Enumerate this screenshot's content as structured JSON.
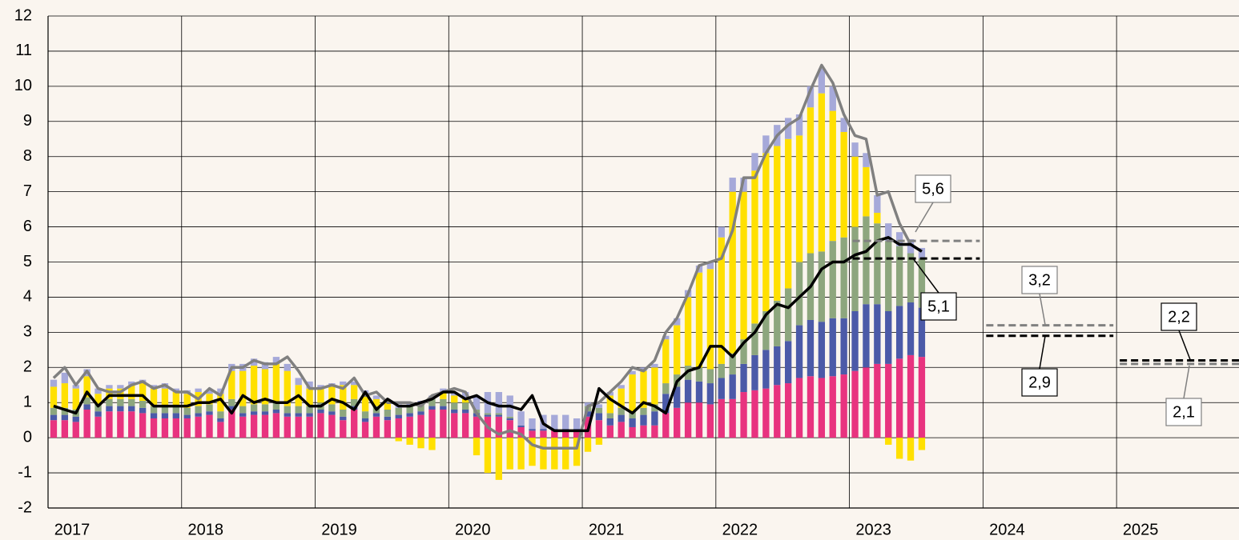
{
  "chart_data": {
    "type": "bar",
    "stacked": true,
    "categories": [
      "2017",
      null,
      null,
      null,
      null,
      null,
      null,
      null,
      null,
      null,
      null,
      null,
      "2018",
      null,
      null,
      null,
      null,
      null,
      null,
      null,
      null,
      null,
      null,
      null,
      "2019",
      null,
      null,
      null,
      null,
      null,
      null,
      null,
      null,
      null,
      null,
      null,
      "2020",
      null,
      null,
      null,
      null,
      null,
      null,
      null,
      null,
      null,
      null,
      null,
      "2021",
      null,
      null,
      null,
      null,
      null,
      null,
      null,
      null,
      null,
      null,
      null,
      "2022",
      null,
      null,
      null,
      null,
      null,
      null,
      null,
      null,
      null,
      null,
      null,
      "2023",
      null,
      null,
      null,
      null,
      null,
      null,
      null,
      null,
      null,
      null,
      null,
      "2024",
      null,
      null,
      null,
      null,
      null,
      null,
      null,
      null,
      null,
      null,
      null,
      "2025",
      null,
      null,
      null,
      null,
      null,
      null,
      null,
      null,
      null,
      null
    ],
    "series": [
      {
        "color": "#e8337f",
        "values": [
          0.5,
          0.5,
          0.45,
          0.8,
          0.6,
          0.75,
          0.75,
          0.75,
          0.7,
          0.55,
          0.55,
          0.55,
          0.55,
          0.6,
          0.65,
          0.45,
          0.8,
          0.6,
          0.65,
          0.65,
          0.7,
          0.6,
          0.6,
          0.6,
          0.7,
          0.65,
          0.5,
          0.8,
          0.45,
          0.6,
          0.5,
          0.55,
          0.6,
          0.65,
          0.8,
          0.8,
          0.7,
          0.7,
          0.6,
          0.6,
          0.6,
          0.5,
          0.3,
          0.2,
          0.2,
          0.2,
          0.2,
          0.2,
          0.6,
          0.5,
          0.35,
          0.45,
          0.3,
          0.35,
          0.35,
          0.7,
          0.85,
          1.0,
          1.0,
          0.95,
          1.1,
          1.1,
          1.3,
          1.35,
          1.4,
          1.5,
          1.55,
          1.7,
          1.75,
          1.7,
          1.75,
          1.8,
          1.9,
          2.0,
          2.1,
          2.1,
          2.25,
          2.35,
          2.3,
          null,
          null,
          null,
          null,
          null,
          null,
          null,
          null,
          null,
          null,
          null,
          null,
          null,
          null,
          null,
          null,
          null,
          null,
          null,
          null,
          null,
          null,
          null,
          null,
          null,
          null,
          null,
          null
        ]
      },
      {
        "color": "#4b5aa8",
        "values": [
          0.15,
          0.15,
          0.15,
          0.15,
          0.15,
          0.15,
          0.15,
          0.15,
          0.15,
          0.15,
          0.15,
          0.15,
          0.1,
          0.1,
          0.1,
          0.1,
          0.1,
          0.1,
          0.1,
          0.1,
          0.1,
          0.1,
          0.1,
          0.1,
          0.1,
          0.1,
          0.1,
          0.1,
          0.1,
          0.1,
          0.1,
          0.1,
          0.1,
          0.1,
          0.1,
          0.1,
          0.1,
          0.1,
          0.1,
          0.05,
          0.05,
          0.05,
          0.05,
          0.05,
          0.05,
          0.05,
          0.05,
          0.05,
          0.15,
          0.2,
          0.2,
          0.2,
          0.25,
          0.3,
          0.4,
          0.55,
          0.6,
          0.65,
          0.6,
          0.6,
          0.6,
          0.7,
          0.8,
          1.0,
          1.1,
          1.1,
          1.2,
          1.5,
          1.6,
          1.6,
          1.65,
          1.6,
          1.7,
          1.8,
          1.7,
          1.5,
          1.5,
          1.5,
          1.4,
          null,
          null,
          null,
          null,
          null,
          null,
          null,
          null,
          null,
          null,
          null,
          null,
          null,
          null,
          null,
          null,
          null,
          null,
          null,
          null,
          null,
          null,
          null,
          null,
          null,
          null,
          null,
          null
        ]
      },
      {
        "color": "#8da67e",
        "values": [
          0.2,
          0.2,
          0.2,
          0.2,
          0.2,
          0.2,
          0.2,
          0.2,
          0.2,
          0.2,
          0.2,
          0.2,
          0.2,
          0.2,
          0.2,
          0.2,
          0.2,
          0.2,
          0.2,
          0.2,
          0.2,
          0.2,
          0.2,
          0.2,
          0.2,
          0.2,
          0.2,
          0.2,
          0.2,
          0.2,
          0.2,
          0.2,
          0.2,
          0.2,
          0.2,
          0.2,
          0.2,
          0.2,
          0.1,
          0.05,
          0.05,
          0.05,
          0,
          0,
          0,
          0,
          0,
          0,
          0.15,
          0.15,
          0.15,
          0.2,
          0.2,
          0.2,
          0.2,
          0.3,
          0.35,
          0.4,
          0.4,
          0.4,
          0.4,
          0.6,
          0.7,
          0.9,
          1.1,
          1.3,
          1.5,
          1.8,
          1.9,
          2.0,
          2.2,
          2.3,
          2.4,
          2.5,
          2.3,
          2.0,
          1.7,
          1.4,
          1.4,
          null,
          null,
          null,
          null,
          null,
          null,
          null,
          null,
          null,
          null,
          null,
          null,
          null,
          null,
          null,
          null,
          null,
          null,
          null,
          null,
          null,
          null,
          null,
          null,
          null,
          null,
          null,
          null
        ]
      },
      {
        "color": "#ffe000",
        "values": [
          0.6,
          0.7,
          0.6,
          0.6,
          0.3,
          0.3,
          0.3,
          0.4,
          0.5,
          0.5,
          0.5,
          0.4,
          0.4,
          0.4,
          0.3,
          0.5,
          0.8,
          1.0,
          1.1,
          1.0,
          1.1,
          1.0,
          0.6,
          0.5,
          0.4,
          0.5,
          0.7,
          0.4,
          0.5,
          0.2,
          0.2,
          -0.1,
          -0.2,
          -0.3,
          -0.35,
          0.2,
          0.2,
          0.1,
          -0.5,
          -1.0,
          -1.2,
          -0.9,
          -0.9,
          -0.8,
          -0.9,
          -0.9,
          -0.9,
          -0.8,
          -0.4,
          -0.2,
          0.5,
          0.55,
          1.05,
          1.05,
          1.05,
          1.25,
          1.4,
          1.95,
          2.7,
          2.85,
          3.6,
          4.6,
          4.2,
          4.35,
          4.5,
          4.4,
          4.25,
          3.6,
          4.15,
          4.5,
          3.7,
          3.0,
          2.0,
          1.4,
          0.3,
          -0.2,
          -0.6,
          -0.65,
          -0.35,
          null,
          null,
          null,
          null,
          null,
          null,
          null,
          null,
          null,
          null,
          null,
          null,
          null,
          null,
          null,
          null,
          null,
          null,
          null,
          null,
          null,
          null,
          null,
          null,
          null,
          null,
          null,
          null
        ]
      },
      {
        "color": "#a6a9d9",
        "values": [
          0.2,
          0.3,
          0.1,
          0.2,
          0.15,
          0.1,
          0.1,
          0.1,
          0.1,
          0.1,
          0.15,
          0.1,
          0.1,
          0.1,
          0.1,
          0.15,
          0.2,
          0.2,
          0.2,
          0.2,
          0.2,
          0.2,
          0.2,
          0.2,
          0.1,
          0.1,
          0.1,
          0.1,
          0.1,
          0.1,
          0.1,
          0.1,
          0.1,
          0.1,
          0.1,
          0.1,
          0.1,
          0.2,
          0.4,
          0.6,
          0.6,
          0.6,
          0.4,
          0.3,
          0.4,
          0.4,
          0.4,
          0.3,
          0.1,
          0.1,
          0.1,
          0.1,
          0.1,
          0.1,
          0.1,
          0.1,
          0.2,
          0.2,
          0.2,
          0.2,
          0.3,
          0.4,
          0.4,
          0.5,
          0.5,
          0.6,
          0.6,
          0.6,
          0.6,
          0.7,
          0.7,
          0.4,
          0.4,
          0.4,
          0.5,
          0.5,
          0.4,
          0.4,
          0.3,
          null,
          null,
          null,
          null,
          null,
          null,
          null,
          null,
          null,
          null,
          null,
          null,
          null,
          null,
          null,
          null,
          null,
          null,
          null,
          null,
          null,
          null,
          null,
          null,
          null,
          null,
          null,
          null
        ]
      }
    ],
    "lines": [
      {
        "color": "#808080",
        "values": [
          1.7,
          2.0,
          1.5,
          1.9,
          1.4,
          1.3,
          1.3,
          1.5,
          1.6,
          1.4,
          1.5,
          1.3,
          1.3,
          1.1,
          1.4,
          1.2,
          2.0,
          2.0,
          2.2,
          2.1,
          2.1,
          2.3,
          1.9,
          1.4,
          1.4,
          1.5,
          1.4,
          1.7,
          1.2,
          1.3,
          1.0,
          1.0,
          1.0,
          0.9,
          1.2,
          1.3,
          1.4,
          1.3,
          0.7,
          0.3,
          0.1,
          0.2,
          0.1,
          -0.2,
          -0.3,
          -0.3,
          -0.3,
          -0.3,
          0.9,
          1.0,
          1.3,
          1.6,
          2.0,
          1.9,
          2.2,
          3.0,
          3.4,
          4.1,
          4.9,
          5.0,
          5.1,
          5.9,
          7.4,
          7.4,
          8.1,
          8.6,
          8.9,
          9.1,
          9.9,
          10.6,
          10.1,
          9.2,
          8.6,
          8.5,
          6.9,
          7.0,
          6.1,
          5.5,
          5.3,
          null,
          null,
          null,
          null,
          null,
          null,
          null,
          null,
          null,
          null,
          null,
          null,
          null,
          null,
          null,
          null,
          null,
          null,
          null,
          null,
          null,
          null,
          null,
          null,
          null,
          null,
          null,
          null
        ]
      },
      {
        "color": "#000000",
        "values": [
          0.9,
          0.8,
          0.7,
          1.3,
          0.9,
          1.2,
          1.2,
          1.2,
          1.2,
          0.9,
          0.9,
          0.9,
          0.9,
          1.0,
          1.0,
          1.1,
          0.7,
          1.2,
          1.0,
          1.1,
          1.0,
          1.0,
          1.2,
          0.9,
          0.9,
          1.1,
          1.0,
          0.8,
          1.3,
          0.8,
          1.1,
          0.9,
          0.9,
          1.0,
          1.1,
          1.3,
          1.3,
          1.1,
          1.2,
          1.0,
          0.9,
          0.9,
          0.8,
          1.2,
          0.4,
          0.2,
          0.2,
          0.2,
          0.2,
          1.4,
          1.1,
          0.9,
          0.7,
          1.0,
          0.9,
          0.7,
          1.6,
          1.9,
          2.0,
          2.6,
          2.6,
          2.3,
          2.7,
          3.0,
          3.5,
          3.8,
          3.7,
          4.0,
          4.3,
          4.8,
          5.0,
          5.0,
          5.2,
          5.3,
          5.6,
          5.7,
          5.5,
          5.5,
          5.3,
          null,
          null,
          null,
          null,
          null,
          null,
          null,
          null,
          null,
          null,
          null,
          null,
          null,
          null,
          null,
          null,
          null,
          null,
          null,
          null,
          null,
          null,
          null,
          null,
          null,
          null,
          null,
          null
        ]
      }
    ],
    "projections": [
      {
        "period": "2023",
        "values": [
          5.6,
          5.1
        ],
        "value_labels": [
          "5,6",
          "5,1"
        ]
      },
      {
        "period": "2024",
        "values": [
          3.2,
          2.9
        ],
        "value_labels": [
          "3,2",
          "2,9"
        ]
      },
      {
        "period": "2025",
        "values": [
          2.1,
          2.2
        ],
        "value_labels": [
          "2,1",
          "2,2"
        ]
      }
    ],
    "ylim": [
      -2,
      12
    ],
    "yticks": [
      -2,
      -1,
      0,
      1,
      2,
      3,
      4,
      5,
      6,
      7,
      8,
      9,
      10,
      11,
      12
    ],
    "grid": true
  }
}
